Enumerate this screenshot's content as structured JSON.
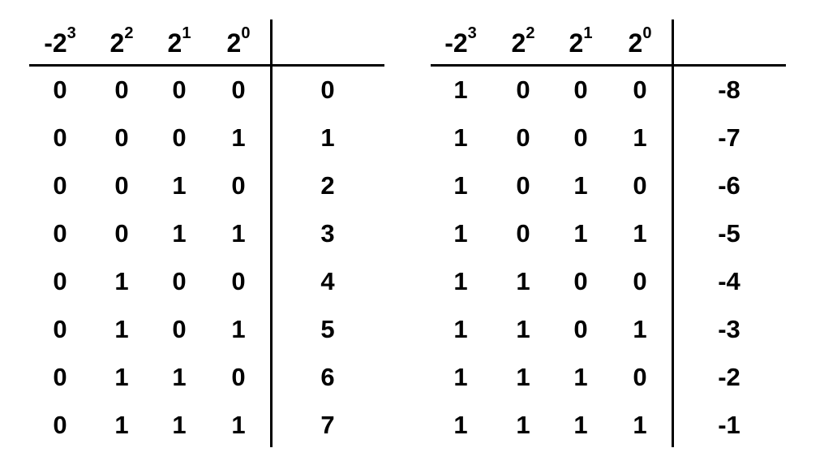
{
  "tables": [
    {
      "headers": [
        {
          "base": "-2",
          "exp": "3"
        },
        {
          "base": "2",
          "exp": "2"
        },
        {
          "base": "2",
          "exp": "1"
        },
        {
          "base": "2",
          "exp": "0"
        }
      ],
      "rows": [
        {
          "bits": [
            "0",
            "0",
            "0",
            "0"
          ],
          "value": "0"
        },
        {
          "bits": [
            "0",
            "0",
            "0",
            "1"
          ],
          "value": "1"
        },
        {
          "bits": [
            "0",
            "0",
            "1",
            "0"
          ],
          "value": "2"
        },
        {
          "bits": [
            "0",
            "0",
            "1",
            "1"
          ],
          "value": "3"
        },
        {
          "bits": [
            "0",
            "1",
            "0",
            "0"
          ],
          "value": "4"
        },
        {
          "bits": [
            "0",
            "1",
            "0",
            "1"
          ],
          "value": "5"
        },
        {
          "bits": [
            "0",
            "1",
            "1",
            "0"
          ],
          "value": "6"
        },
        {
          "bits": [
            "0",
            "1",
            "1",
            "1"
          ],
          "value": "7"
        }
      ]
    },
    {
      "headers": [
        {
          "base": "-2",
          "exp": "3"
        },
        {
          "base": "2",
          "exp": "2"
        },
        {
          "base": "2",
          "exp": "1"
        },
        {
          "base": "2",
          "exp": "0"
        }
      ],
      "rows": [
        {
          "bits": [
            "1",
            "0",
            "0",
            "0"
          ],
          "value": "-8"
        },
        {
          "bits": [
            "1",
            "0",
            "0",
            "1"
          ],
          "value": "-7"
        },
        {
          "bits": [
            "1",
            "0",
            "1",
            "0"
          ],
          "value": "-6"
        },
        {
          "bits": [
            "1",
            "0",
            "1",
            "1"
          ],
          "value": "-5"
        },
        {
          "bits": [
            "1",
            "1",
            "0",
            "0"
          ],
          "value": "-4"
        },
        {
          "bits": [
            "1",
            "1",
            "0",
            "1"
          ],
          "value": "-3"
        },
        {
          "bits": [
            "1",
            "1",
            "1",
            "0"
          ],
          "value": "-2"
        },
        {
          "bits": [
            "1",
            "1",
            "1",
            "1"
          ],
          "value": "-1"
        }
      ]
    }
  ]
}
